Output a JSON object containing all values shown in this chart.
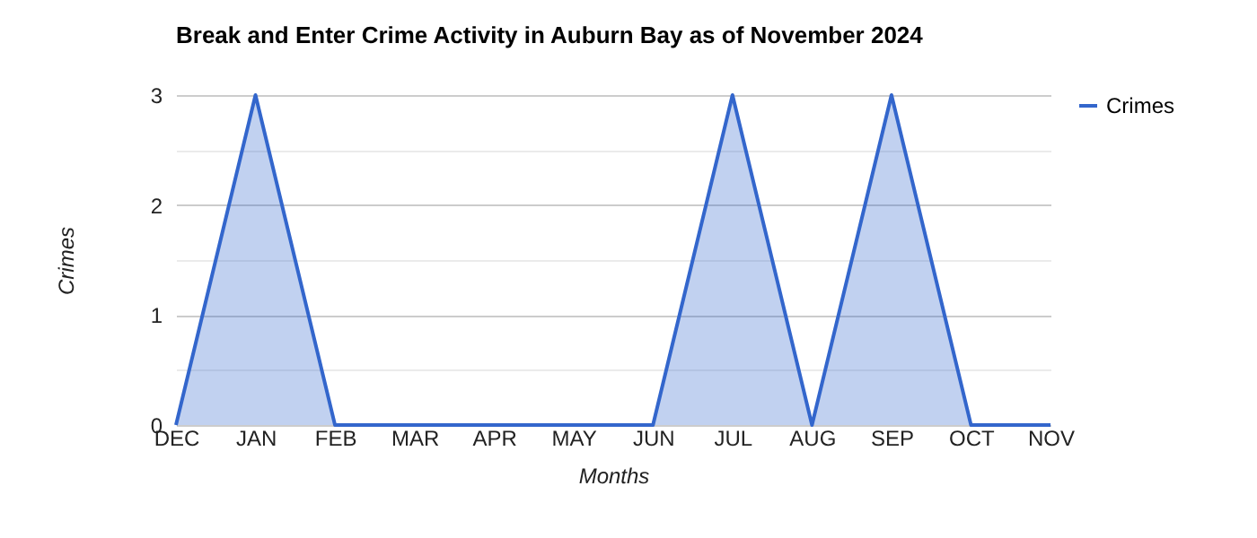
{
  "chart_data": {
    "type": "area",
    "title": "Break and Enter Crime Activity in Auburn Bay as of November 2024",
    "xlabel": "Months",
    "ylabel": "Crimes",
    "categories": [
      "DEC",
      "JAN",
      "FEB",
      "MAR",
      "APR",
      "MAY",
      "JUN",
      "JUL",
      "AUG",
      "SEP",
      "OCT",
      "NOV"
    ],
    "series": [
      {
        "name": "Crimes",
        "color": "#3366cc",
        "values": [
          0,
          3,
          0,
          0,
          0,
          0,
          0,
          3,
          0,
          3,
          0,
          0
        ]
      }
    ],
    "ylim": [
      0,
      3
    ],
    "yticks": [
      0,
      {
        "value": 0.5,
        "label": null
      },
      1,
      {
        "value": 1.5,
        "label": null
      },
      2,
      {
        "value": 2.5,
        "label": null
      },
      3
    ],
    "grid": "y",
    "legend": "top right",
    "marker": "none"
  }
}
